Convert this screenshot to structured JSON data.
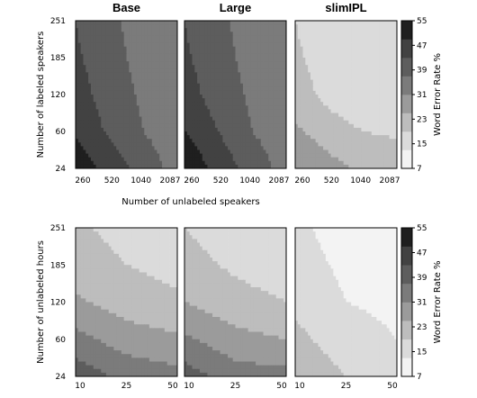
{
  "chart_data": [
    {
      "type": "heatmap",
      "row": "top",
      "panels": [
        {
          "title": "Base",
          "x": [
            260,
            520,
            1040,
            2087
          ],
          "y": [
            24,
            60,
            120,
            185,
            251
          ],
          "coarse_z": [
            [
              53,
              47,
              40,
              35
            ],
            [
              48,
              42,
              37,
              34
            ],
            [
              46,
              40,
              36,
              33
            ],
            [
              44,
              39,
              35,
              33
            ],
            [
              43,
              38,
              35,
              33
            ]
          ]
        },
        {
          "title": "Large",
          "x": [
            260,
            520,
            1040,
            2087
          ],
          "y": [
            24,
            60,
            120,
            185,
            251
          ],
          "coarse_z": [
            [
              54,
              47,
              40,
              35
            ],
            [
              49,
              43,
              37,
              34
            ],
            [
              46,
              40,
              36,
              33
            ],
            [
              44,
              39,
              35,
              33
            ],
            [
              43,
              38,
              35,
              33
            ]
          ]
        },
        {
          "title": "slimIPL",
          "x": [
            260,
            520,
            1040,
            2087
          ],
          "y": [
            24,
            60,
            120,
            185,
            251
          ],
          "coarse_z": [
            [
              31,
              27,
              24,
              23
            ],
            [
              26,
              22,
              19,
              18
            ],
            [
              22,
              17,
              14,
              14
            ],
            [
              20,
              16,
              14,
              13
            ],
            [
              19,
              15,
              13,
              13
            ]
          ]
        }
      ],
      "xlabel": "Number of unlabeled speakers",
      "ylabel": "Number of labeled speakers",
      "xticks": [
        "260",
        "520",
        "1040",
        "2087"
      ],
      "yticks": [
        "24",
        "60",
        "120",
        "185",
        "251"
      ],
      "colorbar": {
        "label": "Word Error Rate %",
        "ticks": [
          "7",
          "15",
          "23",
          "31",
          "39",
          "47",
          "55"
        ],
        "min": 7,
        "max": 55
      }
    },
    {
      "type": "heatmap",
      "row": "bottom",
      "panels": [
        {
          "title": "",
          "x": [
            10,
            25,
            50
          ],
          "y": [
            24,
            60,
            120,
            185,
            251
          ],
          "coarse_z": [
            [
              41,
              35,
              33
            ],
            [
              33,
              28,
              26
            ],
            [
              26,
              22,
              20
            ],
            [
              22,
              19,
              17
            ],
            [
              20,
              17,
              15
            ]
          ]
        },
        {
          "title": "",
          "x": [
            10,
            25,
            50
          ],
          "y": [
            24,
            60,
            120,
            185,
            251
          ],
          "coarse_z": [
            [
              40,
              34,
              33
            ],
            [
              32,
              27,
              25
            ],
            [
              25,
              21,
              19
            ],
            [
              21,
              18,
              16
            ],
            [
              19,
              16,
              14
            ]
          ]
        },
        {
          "title": "",
          "x": [
            10,
            25,
            50
          ],
          "y": [
            24,
            60,
            120,
            185,
            251
          ],
          "coarse_z": [
            [
              25,
              19,
              17
            ],
            [
              21,
              15,
              13
            ],
            [
              17,
              13,
              12
            ],
            [
              15,
              12,
              11
            ],
            [
              14,
              11,
              10
            ]
          ]
        }
      ],
      "ylabel": "Number of unlabeled hours",
      "xticks": [
        "10",
        "25",
        "50"
      ],
      "yticks": [
        "24",
        "60",
        "120",
        "185",
        "251"
      ],
      "colorbar": {
        "label": "Word Error Rate %",
        "ticks": [
          "7",
          "15",
          "23",
          "31",
          "39",
          "47",
          "55"
        ],
        "min": 7,
        "max": 55
      }
    }
  ]
}
